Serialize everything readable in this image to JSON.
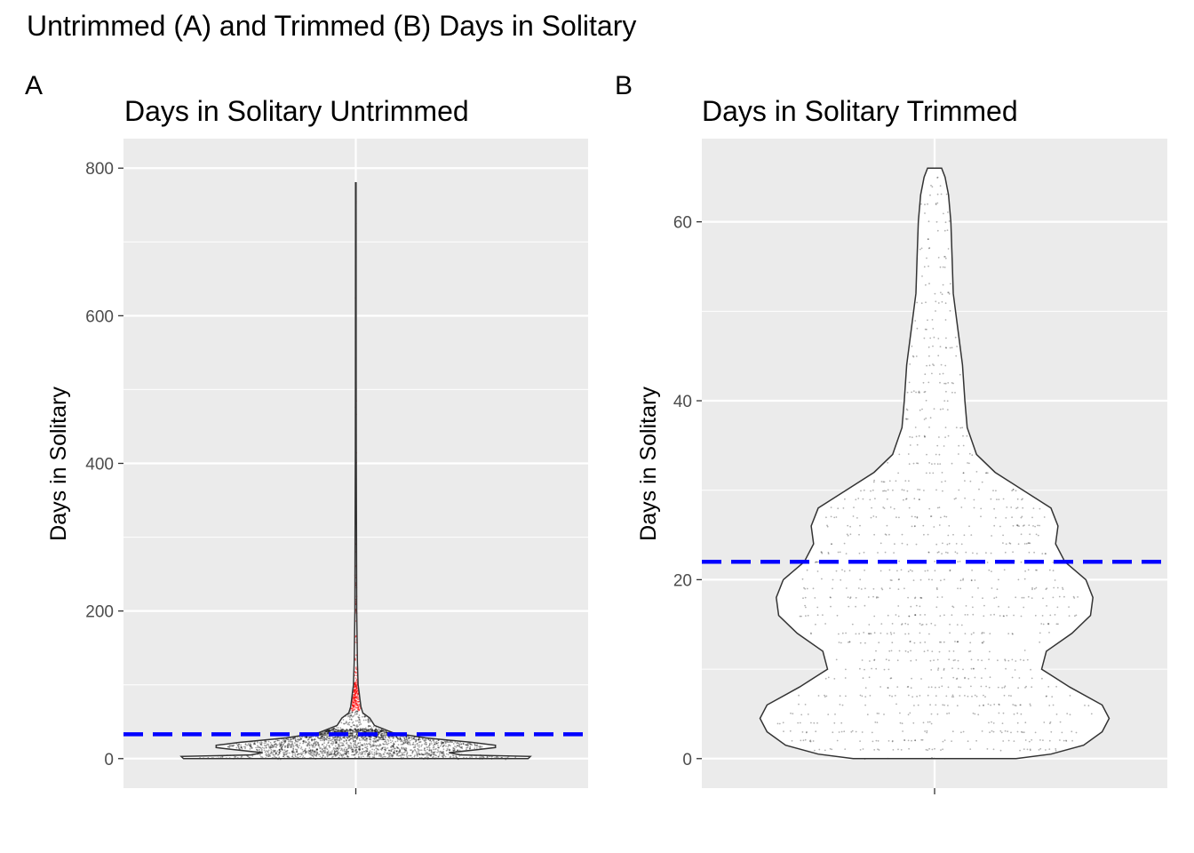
{
  "figure_title": "Untrimmed (A) and Trimmed (B) Days in Solitary",
  "chart_data": [
    {
      "type": "violin",
      "panel_tag": "A",
      "title": "Days in Solitary Untrimmed",
      "xlabel": "",
      "ylabel": "Days in Solitary",
      "ylim": [
        -40,
        840
      ],
      "yticks": [
        0,
        200,
        400,
        600,
        800
      ],
      "ytick_labels": [
        "0",
        "200",
        "400",
        "600",
        "800"
      ],
      "grid": true,
      "reference_line": {
        "value": 33,
        "style": "dashed",
        "color": "#0000ff"
      },
      "highlight_threshold": 65,
      "highlight_color": "#ff0000",
      "points_color": "#000000",
      "max_value": 780,
      "density_profile": [
        {
          "y": 0,
          "halfwidth": 0.74
        },
        {
          "y": 3,
          "halfwidth": 0.75
        },
        {
          "y": 5,
          "halfwidth": 0.45
        },
        {
          "y": 8,
          "halfwidth": 0.4
        },
        {
          "y": 12,
          "halfwidth": 0.52
        },
        {
          "y": 15,
          "halfwidth": 0.6
        },
        {
          "y": 18,
          "halfwidth": 0.6
        },
        {
          "y": 22,
          "halfwidth": 0.5
        },
        {
          "y": 28,
          "halfwidth": 0.3
        },
        {
          "y": 35,
          "halfwidth": 0.16
        },
        {
          "y": 45,
          "halfwidth": 0.08
        },
        {
          "y": 55,
          "halfwidth": 0.06
        },
        {
          "y": 62,
          "halfwidth": 0.03
        },
        {
          "y": 70,
          "halfwidth": 0.022
        },
        {
          "y": 80,
          "halfwidth": 0.018
        },
        {
          "y": 90,
          "halfwidth": 0.014
        },
        {
          "y": 100,
          "halfwidth": 0.01
        },
        {
          "y": 130,
          "halfwidth": 0.007
        },
        {
          "y": 200,
          "halfwidth": 0.004
        },
        {
          "y": 300,
          "halfwidth": 0.003
        },
        {
          "y": 420,
          "halfwidth": 0.002
        },
        {
          "y": 520,
          "halfwidth": 0.0015
        },
        {
          "y": 780,
          "halfwidth": 0.001
        }
      ]
    },
    {
      "type": "violin",
      "panel_tag": "B",
      "title": "Days in Solitary Trimmed",
      "xlabel": "",
      "ylabel": "Days in Solitary",
      "ylim": [
        -3.3,
        69.3
      ],
      "yticks": [
        0,
        20,
        40,
        60
      ],
      "ytick_labels": [
        "0",
        "20",
        "40",
        "60"
      ],
      "grid": true,
      "reference_line": {
        "value": 22,
        "style": "dashed",
        "color": "#0000ff"
      },
      "points_color": "#000000",
      "max_value": 66,
      "density_profile": [
        {
          "y": 0,
          "halfwidth": 0.35
        },
        {
          "y": 0.5,
          "halfwidth": 0.5
        },
        {
          "y": 1.5,
          "halfwidth": 0.64
        },
        {
          "y": 3,
          "halfwidth": 0.72
        },
        {
          "y": 4.5,
          "halfwidth": 0.75
        },
        {
          "y": 6,
          "halfwidth": 0.72
        },
        {
          "y": 8,
          "halfwidth": 0.58
        },
        {
          "y": 10,
          "halfwidth": 0.46
        },
        {
          "y": 12,
          "halfwidth": 0.48
        },
        {
          "y": 14,
          "halfwidth": 0.59
        },
        {
          "y": 16,
          "halfwidth": 0.67
        },
        {
          "y": 18,
          "halfwidth": 0.68
        },
        {
          "y": 20,
          "halfwidth": 0.65
        },
        {
          "y": 22,
          "halfwidth": 0.56
        },
        {
          "y": 24,
          "halfwidth": 0.52
        },
        {
          "y": 26,
          "halfwidth": 0.53
        },
        {
          "y": 28,
          "halfwidth": 0.5
        },
        {
          "y": 30,
          "halfwidth": 0.38
        },
        {
          "y": 32,
          "halfwidth": 0.26
        },
        {
          "y": 34,
          "halfwidth": 0.18
        },
        {
          "y": 37,
          "halfwidth": 0.14
        },
        {
          "y": 40,
          "halfwidth": 0.13
        },
        {
          "y": 44,
          "halfwidth": 0.12
        },
        {
          "y": 48,
          "halfwidth": 0.1
        },
        {
          "y": 52,
          "halfwidth": 0.08
        },
        {
          "y": 56,
          "halfwidth": 0.075
        },
        {
          "y": 60,
          "halfwidth": 0.07
        },
        {
          "y": 63,
          "halfwidth": 0.06
        },
        {
          "y": 65,
          "halfwidth": 0.045
        },
        {
          "y": 66,
          "halfwidth": 0.03
        }
      ]
    }
  ]
}
